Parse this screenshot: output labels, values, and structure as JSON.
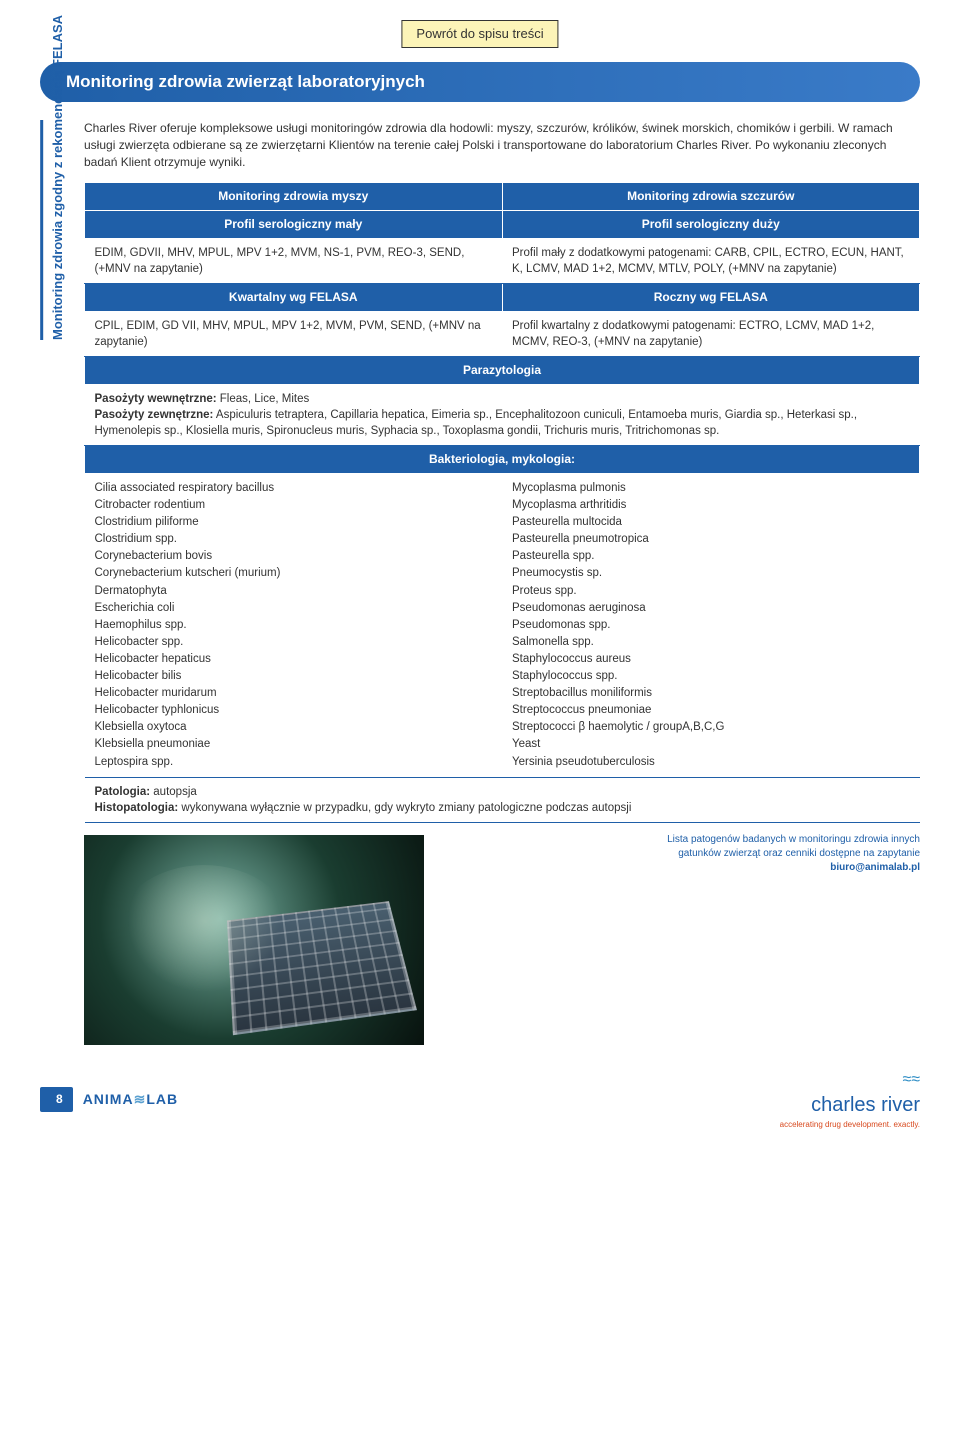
{
  "toc_link": "Powrót do spisu treści",
  "page_title": "Monitoring zdrowia zwierząt laboratoryjnych",
  "side_label": "Monitoring zdrowia zgodny\nz rekomendacją FELASA",
  "intro": "Charles River oferuje kompleksowe usługi monitoringów zdrowia dla hodowli: myszy, szczurów, królików, świnek morskich, chomików i gerbili. W ramach usługi zwierzęta odbierane są ze zwierzętarni Klientów na terenie całej Polski i transportowane do laboratorium Charles River. Po wykonaniu zleconych badań Klient otrzymuje wyniki.",
  "headers": {
    "mouse": "Monitoring zdrowia myszy",
    "rat": "Monitoring zdrowia szczurów",
    "profile_small": "Profil serologiczny mały",
    "profile_large": "Profil serologiczny duży",
    "quarterly": "Kwartalny wg FELASA",
    "annual": "Roczny wg FELASA",
    "parasitology": "Parazytologia",
    "bacteriology": "Bakteriologia, mykologia:"
  },
  "serology": {
    "small": "EDIM, GDVII, MHV, MPUL, MPV 1+2, MVM, NS-1, PVM, REO-3, SEND, (+MNV na zapytanie)",
    "large": "Profil mały z dodatkowymi patogenami: CARB, CPIL, ECTRO, ECUN, HANT, K, LCMV, MAD 1+2, MCMV, MTLV, POLY, (+MNV na zapytanie)",
    "quarterly": "CPIL, EDIM, GD VII, MHV, MPUL, MPV 1+2, MVM, PVM, SEND, (+MNV na zapytanie)",
    "annual": "Profil kwartalny z dodatkowymi patogenami: ECTRO, LCMV, MAD 1+2, MCMV, REO-3, (+MNV na zapytanie)"
  },
  "parasites": {
    "internal_label": "Pasożyty wewnętrzne:",
    "internal": " Fleas, Lice, Mites",
    "external_label": "Pasożyty zewnętrzne:",
    "external": " Aspiculuris tetraptera, Capillaria hepatica, Eimeria sp., Encephalitozoon cuniculi, Entamoeba muris, Giardia sp., Heterkasi sp., Hymenolepis sp., Klosiella muris, Spironucleus muris, Syphacia sp., Toxoplasma gondii, Trichuris muris, Tritrichomonas sp."
  },
  "bact_left": [
    "Cilia associated respiratory bacillus",
    "Citrobacter rodentium",
    "Clostridium piliforme",
    "Clostridium spp.",
    "Corynebacterium bovis",
    "Corynebacterium kutscheri (murium)",
    "Dermatophyta",
    "Escherichia coli",
    "Haemophilus spp.",
    "Helicobacter spp.",
    "Helicobacter hepaticus",
    "Helicobacter bilis",
    "Helicobacter muridarum",
    "Helicobacter typhlonicus",
    "Klebsiella oxytoca",
    "Klebsiella pneumoniae",
    "Leptospira spp."
  ],
  "bact_right": [
    "Mycoplasma pulmonis",
    "Mycoplasma arthritidis",
    "Pasteurella multocida",
    "Pasteurella pneumotropica",
    "Pasteurella spp.",
    "Pneumocystis sp.",
    "Proteus spp.",
    "Pseudomonas aeruginosa",
    "Pseudomonas spp.",
    "Salmonella spp.",
    "Staphylococcus aureus",
    "Staphylococcus spp.",
    "Streptobacillus moniliformis",
    "Streptococcus pneumoniae",
    "Streptococci β haemolytic / groupA,B,C,G",
    "Yeast",
    "Yersinia pseudotuberculosis"
  ],
  "pathology": {
    "label1": "Patologia:",
    "text1": " autopsja",
    "label2": "Histopatologia:",
    "text2": " wykonywana wyłącznie w przypadku, gdy wykryto zmiany patologiczne podczas autopsji"
  },
  "note": {
    "line1": "Lista patogenów badanych w monitoringu zdrowia innych",
    "line2": "gatunków zwierząt oraz cenniki dostępne na zapytanie",
    "email": "biuro@animalab.pl"
  },
  "footer": {
    "page": "8",
    "animalab": "ANIMA",
    "animalab2": "LAB",
    "cr_name": "charles river",
    "cr_tagline": "accelerating drug development. exactly."
  }
}
